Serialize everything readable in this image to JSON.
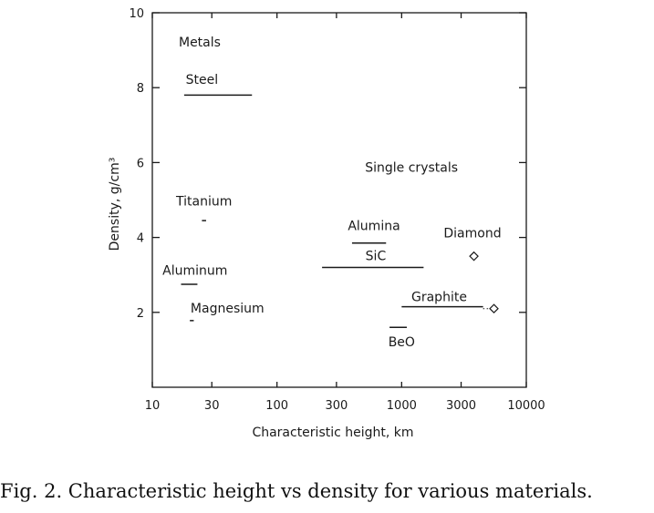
{
  "caption": "Fig. 2. Characteristic height vs density for various materials.",
  "chart_data": {
    "type": "scatter",
    "xscale": "log",
    "xlabel": "Characteristic height,   km",
    "ylabel": "Density,   g/cm³",
    "xlim": [
      10,
      10000
    ],
    "ylim": [
      0,
      10
    ],
    "xticks": [
      10,
      30,
      100,
      300,
      1000,
      3000,
      10000
    ],
    "xtick_labels": [
      "10",
      "30",
      "100",
      "300",
      "1000",
      "3000",
      "10000"
    ],
    "yticks": [
      2,
      4,
      6,
      8,
      10
    ],
    "ytick_labels": [
      "2",
      "4",
      "6",
      "8",
      "10"
    ],
    "group_labels": [
      {
        "text": "Metals",
        "x": 24,
        "y": 9.1
      },
      {
        "text": "Single crystals",
        "x": 1200,
        "y": 5.75
      }
    ],
    "ranges": [
      {
        "name": "Steel",
        "x": [
          18,
          63
        ],
        "y": 7.8,
        "label_x": 25,
        "label_y": 8.1
      },
      {
        "name": "Titanium",
        "x": [
          25,
          27
        ],
        "y": 4.45,
        "label_x": 26,
        "label_y": 4.85
      },
      {
        "name": "Aluminum",
        "x": [
          17,
          23
        ],
        "y": 2.75,
        "label_x": 22,
        "label_y": 3.0
      },
      {
        "name": "Magnesium",
        "x": [
          20,
          21.5
        ],
        "y": 1.78,
        "label_x": 40,
        "label_y": 2.0
      },
      {
        "name": "Alumina",
        "x": [
          400,
          750
        ],
        "y": 3.85,
        "label_x": 600,
        "label_y": 4.2
      },
      {
        "name": "SiC",
        "x": [
          230,
          1500
        ],
        "y": 3.2,
        "label_x": 620,
        "label_y": 3.4
      },
      {
        "name": "Graphite",
        "x": [
          1000,
          4500
        ],
        "y": 2.15,
        "label_x": 2000,
        "label_y": 2.3
      },
      {
        "name": "BeO",
        "x": [
          800,
          1100
        ],
        "y": 1.6,
        "label_x": 1000,
        "label_y": 1.1
      }
    ],
    "points": [
      {
        "name": "Diamond",
        "x": 3800,
        "y": 3.5,
        "label_x": 3700,
        "label_y": 4.0
      },
      {
        "name": "Graphite (single crystal)",
        "label": "",
        "x": 5500,
        "y": 2.1,
        "dotted_from": 4500
      }
    ]
  }
}
